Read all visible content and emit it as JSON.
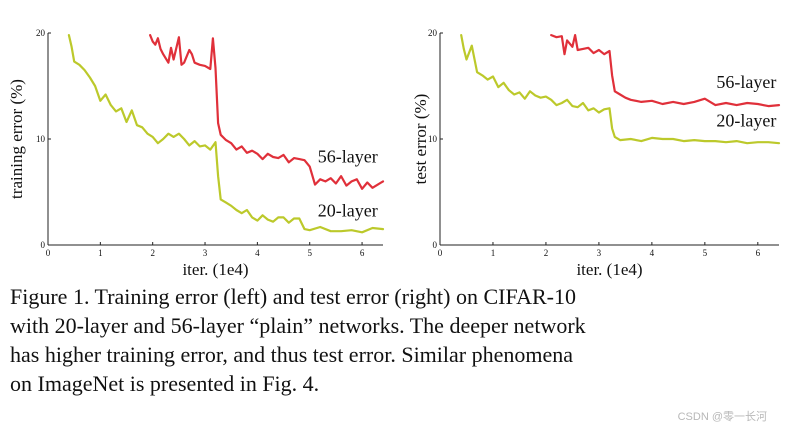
{
  "chart_data": [
    {
      "type": "line",
      "title": "",
      "xlabel": "iter. (1e4)",
      "ylabel": "training error (%)",
      "xlim": [
        0,
        6.4
      ],
      "ylim": [
        0,
        20
      ],
      "xticks": [
        0,
        1,
        2,
        3,
        4,
        5,
        6
      ],
      "yticks": [
        0,
        10,
        20
      ],
      "series": [
        {
          "name": "56-layer",
          "color": "#e0303a",
          "x": [
            1.95,
            2.0,
            2.05,
            2.1,
            2.15,
            2.2,
            2.3,
            2.35,
            2.4,
            2.5,
            2.55,
            2.6,
            2.7,
            2.75,
            2.8,
            2.9,
            3.0,
            3.1,
            3.15,
            3.2,
            3.25,
            3.3,
            3.4,
            3.5,
            3.6,
            3.7,
            3.8,
            3.9,
            4.0,
            4.1,
            4.2,
            4.3,
            4.4,
            4.5,
            4.6,
            4.7,
            4.8,
            4.9,
            5.0,
            5.1,
            5.2,
            5.3,
            5.4,
            5.5,
            5.6,
            5.7,
            5.8,
            5.9,
            6.0,
            6.1,
            6.2,
            6.3,
            6.4
          ],
          "y": [
            19.8,
            19.2,
            18.9,
            19.5,
            18.5,
            18.0,
            17.2,
            18.6,
            17.5,
            19.6,
            17.0,
            17.2,
            18.4,
            18.0,
            17.2,
            17.0,
            16.9,
            16.6,
            19.5,
            16.7,
            11.5,
            10.4,
            9.9,
            9.6,
            9.0,
            9.3,
            8.7,
            8.9,
            8.6,
            8.1,
            8.6,
            8.3,
            8.2,
            8.5,
            7.8,
            8.2,
            8.1,
            8.0,
            7.4,
            5.7,
            6.2,
            6.0,
            6.3,
            5.8,
            6.5,
            5.6,
            6.0,
            6.2,
            5.3,
            5.9,
            5.4,
            5.7,
            6.0
          ]
        },
        {
          "name": "20-layer",
          "color": "#bcc92b",
          "x": [
            0.4,
            0.45,
            0.5,
            0.6,
            0.7,
            0.8,
            0.9,
            1.0,
            1.1,
            1.2,
            1.3,
            1.4,
            1.5,
            1.6,
            1.7,
            1.8,
            1.9,
            2.0,
            2.1,
            2.2,
            2.3,
            2.4,
            2.5,
            2.6,
            2.7,
            2.8,
            2.9,
            3.0,
            3.1,
            3.2,
            3.25,
            3.3,
            3.4,
            3.5,
            3.6,
            3.7,
            3.8,
            3.9,
            4.0,
            4.1,
            4.2,
            4.3,
            4.4,
            4.5,
            4.6,
            4.7,
            4.8,
            4.9,
            5.0,
            5.2,
            5.4,
            5.6,
            5.8,
            6.0,
            6.2,
            6.4
          ],
          "y": [
            19.8,
            18.7,
            17.3,
            17.0,
            16.5,
            15.8,
            15.0,
            13.6,
            14.2,
            13.2,
            12.6,
            12.9,
            11.6,
            12.7,
            11.3,
            11.1,
            10.5,
            10.2,
            9.6,
            10.0,
            10.5,
            10.2,
            10.5,
            10.0,
            9.4,
            9.8,
            9.3,
            9.4,
            9.0,
            9.7,
            6.5,
            4.3,
            4.0,
            3.7,
            3.3,
            3.0,
            3.3,
            2.6,
            2.3,
            2.8,
            2.4,
            2.2,
            2.6,
            2.6,
            2.1,
            2.5,
            2.5,
            1.5,
            1.4,
            1.7,
            1.3,
            1.3,
            1.4,
            1.2,
            1.6,
            1.5
          ]
        }
      ]
    },
    {
      "type": "line",
      "title": "",
      "xlabel": "iter. (1e4)",
      "ylabel": "test error (%)",
      "xlim": [
        0,
        6.4
      ],
      "ylim": [
        0,
        20
      ],
      "xticks": [
        0,
        1,
        2,
        3,
        4,
        5,
        6
      ],
      "yticks": [
        0,
        10,
        20
      ],
      "series": [
        {
          "name": "56-layer",
          "color": "#e0303a",
          "x": [
            2.1,
            2.2,
            2.3,
            2.35,
            2.4,
            2.5,
            2.55,
            2.6,
            2.7,
            2.8,
            2.9,
            3.0,
            3.1,
            3.2,
            3.25,
            3.3,
            3.4,
            3.5,
            3.6,
            3.8,
            4.0,
            4.2,
            4.4,
            4.6,
            4.8,
            5.0,
            5.2,
            5.4,
            5.6,
            5.8,
            6.0,
            6.2,
            6.4
          ],
          "y": [
            19.8,
            19.6,
            19.7,
            18.0,
            19.3,
            18.7,
            19.8,
            18.4,
            18.5,
            18.6,
            18.1,
            18.4,
            18.0,
            18.3,
            16.0,
            14.5,
            14.2,
            13.9,
            13.7,
            13.5,
            13.6,
            13.3,
            13.5,
            13.3,
            13.5,
            13.8,
            13.2,
            13.4,
            13.2,
            13.4,
            13.3,
            13.1,
            13.2
          ]
        },
        {
          "name": "20-layer",
          "color": "#bcc92b",
          "x": [
            0.4,
            0.45,
            0.5,
            0.6,
            0.7,
            0.8,
            0.9,
            1.0,
            1.1,
            1.2,
            1.3,
            1.4,
            1.5,
            1.6,
            1.7,
            1.8,
            1.9,
            2.0,
            2.1,
            2.2,
            2.3,
            2.4,
            2.5,
            2.6,
            2.7,
            2.8,
            2.9,
            3.0,
            3.1,
            3.2,
            3.25,
            3.3,
            3.4,
            3.6,
            3.8,
            4.0,
            4.2,
            4.4,
            4.6,
            4.8,
            5.0,
            5.2,
            5.4,
            5.6,
            5.8,
            6.0,
            6.2,
            6.4
          ],
          "y": [
            19.8,
            18.5,
            17.5,
            18.8,
            16.3,
            16.0,
            15.6,
            15.9,
            14.9,
            15.3,
            14.6,
            14.2,
            14.4,
            13.8,
            14.5,
            14.1,
            13.9,
            14.0,
            13.7,
            13.2,
            13.4,
            13.7,
            13.1,
            13.0,
            13.4,
            12.7,
            12.9,
            12.5,
            12.8,
            12.9,
            11.0,
            10.2,
            9.9,
            10.0,
            9.8,
            10.1,
            10.0,
            10.0,
            9.8,
            9.9,
            9.8,
            9.8,
            9.7,
            9.8,
            9.6,
            9.7,
            9.7,
            9.6
          ]
        }
      ]
    }
  ],
  "caption": {
    "lines": [
      "Figure 1. Training error (left) and test error (right) on CIFAR-10",
      "with 20-layer and 56-layer “plain” networks. The deeper network",
      "has higher training error, and thus test error.  Similar phenomena",
      "on ImageNet is presented in Fig. 4."
    ]
  },
  "watermark": "CSDN @零一长河"
}
